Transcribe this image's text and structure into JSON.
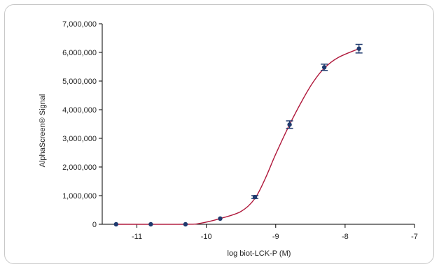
{
  "chart_data": {
    "type": "scatter",
    "title": "",
    "xlabel": "log biot-LCK-P (M)",
    "ylabel": "AlphaScreen® Signal",
    "xlim": [
      -11.5,
      -7
    ],
    "ylim": [
      0,
      7000000
    ],
    "xticks": [
      -11,
      -10,
      -9,
      -8,
      -7
    ],
    "xtick_labels": [
      "-11",
      "-10",
      "-9",
      "-8",
      "-7"
    ],
    "yticks": [
      0,
      1000000,
      2000000,
      3000000,
      4000000,
      5000000,
      6000000,
      7000000
    ],
    "ytick_labels": [
      "0",
      "1,000,000",
      "2,000,000",
      "3,000,000",
      "4,000,000",
      "5,000,000",
      "6,000,000",
      "7,000,000"
    ],
    "grid": false,
    "legend": "none",
    "colors": {
      "points": "#1f3a6e",
      "error_bars": "#1f3a6e",
      "fit_curve": "#b0193c",
      "axis": "#000000"
    },
    "series": [
      {
        "points": [
          {
            "x": -11.3,
            "y": 0,
            "err": 0
          },
          {
            "x": -10.8,
            "y": 0,
            "err": 0
          },
          {
            "x": -10.3,
            "y": 0,
            "err": 0
          },
          {
            "x": -9.8,
            "y": 200000,
            "err": 0
          },
          {
            "x": -9.3,
            "y": 950000,
            "err": 50000
          },
          {
            "x": -8.8,
            "y": 3480000,
            "err": 130000
          },
          {
            "x": -8.3,
            "y": 5480000,
            "err": 110000
          },
          {
            "x": -7.8,
            "y": 6130000,
            "err": 150000
          }
        ]
      }
    ],
    "fit_curve": {
      "points": [
        {
          "x": -11.3,
          "y": 0
        },
        {
          "x": -10.3,
          "y": 0
        },
        {
          "x": -10.1,
          "y": 30000
        },
        {
          "x": -9.8,
          "y": 200000
        },
        {
          "x": -9.5,
          "y": 450000
        },
        {
          "x": -9.3,
          "y": 900000
        },
        {
          "x": -9.15,
          "y": 1600000
        },
        {
          "x": -9.0,
          "y": 2450000
        },
        {
          "x": -8.8,
          "y": 3480000
        },
        {
          "x": -8.6,
          "y": 4400000
        },
        {
          "x": -8.45,
          "y": 5000000
        },
        {
          "x": -8.3,
          "y": 5450000
        },
        {
          "x": -8.1,
          "y": 5820000
        },
        {
          "x": -7.8,
          "y": 6130000
        }
      ]
    }
  }
}
